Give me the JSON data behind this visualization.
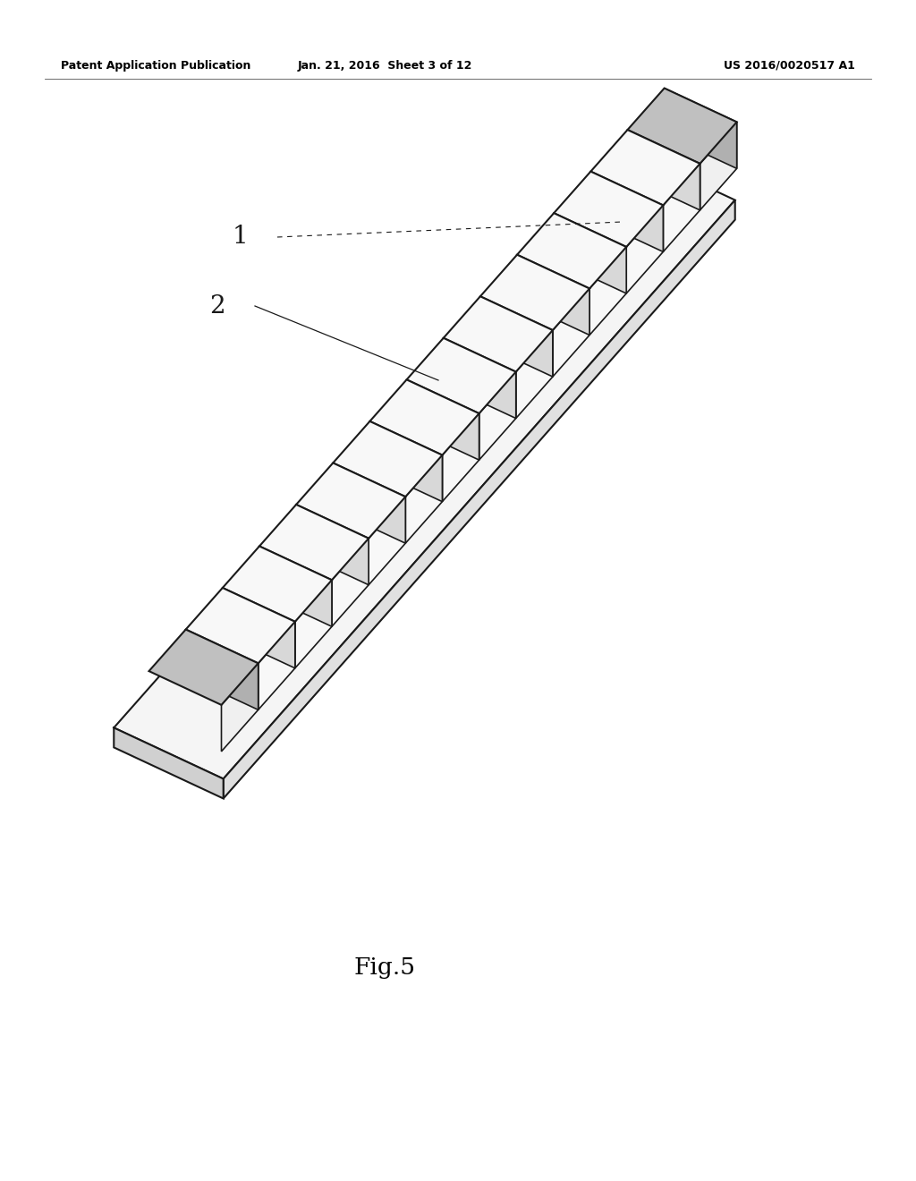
{
  "background_color": "#ffffff",
  "header_left": "Patent Application Publication",
  "header_center": "Jan. 21, 2016  Sheet 3 of 12",
  "header_right": "US 2016/0020517 A1",
  "fig_label": "Fig.5",
  "label_1": "1",
  "label_2": "2",
  "line_color": "#1a1a1a",
  "n_blocks": 14,
  "base_top_color": "#f5f5f5",
  "base_side_color": "#d0d0d0",
  "base_front_color": "#e0e0e0",
  "end_block_top": "#c0c0c0",
  "end_block_front": "#f0f0f0",
  "end_block_side": "#b0b0b0",
  "mid_block_top": "#f8f8f8",
  "mid_block_front": "#f8f8f8",
  "mid_block_side": "#d8d8d8"
}
